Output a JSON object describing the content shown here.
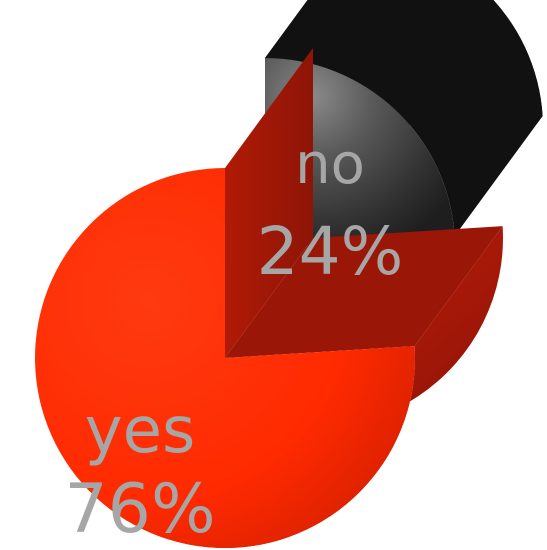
{
  "chart_data": {
    "type": "pie",
    "categories": [
      "yes",
      "no"
    ],
    "values": [
      76,
      24
    ],
    "value_labels": [
      "76%",
      "24%"
    ],
    "unit": "%",
    "style": "3d-exploded",
    "legend": "none",
    "colors": {
      "yes": "#ff2a00",
      "no": "#111111",
      "label": "#a6a6a6"
    }
  }
}
